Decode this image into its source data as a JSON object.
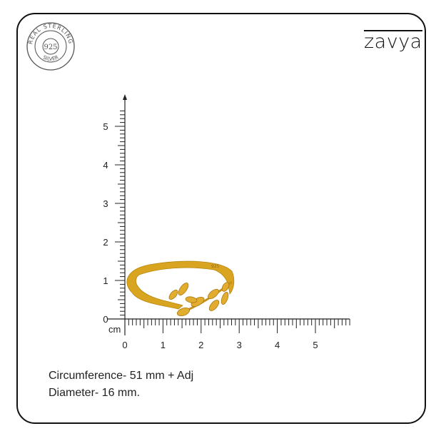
{
  "brand": {
    "name": "zavya"
  },
  "seal": {
    "top_text": "REAL STERLING",
    "center_text": "925",
    "bottom_text": "SILVER"
  },
  "ruler": {
    "unit_label": "cm",
    "x_ticks": [
      "0",
      "1",
      "2",
      "3",
      "4",
      "5"
    ],
    "y_ticks": [
      "0",
      "1",
      "2",
      "3",
      "4",
      "5"
    ]
  },
  "ring": {
    "stamp": "925",
    "color": "#d9a521"
  },
  "specs": {
    "circumference": "Circumference- 51 mm + Adj",
    "diameter": "Diameter- 16 mm."
  }
}
